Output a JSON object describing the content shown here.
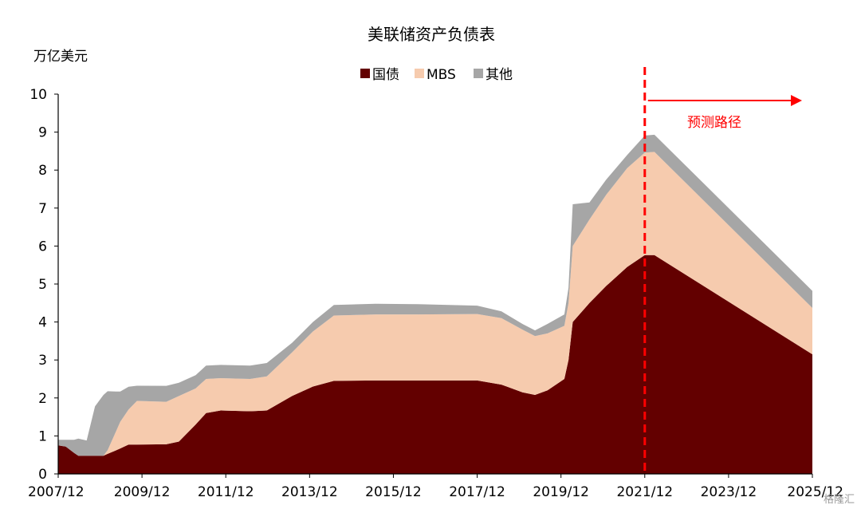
{
  "chart_data": {
    "type": "area",
    "title": "美联储资产负债表",
    "ylabel": "万亿美元",
    "ylim": [
      0,
      10
    ],
    "yticks": [
      0,
      1,
      2,
      3,
      4,
      5,
      6,
      7,
      8,
      9,
      10
    ],
    "xlim": [
      2007.92,
      2025.92
    ],
    "xtick_labels": [
      "2007/12",
      "2009/12",
      "2011/12",
      "2013/12",
      "2015/12",
      "2017/12",
      "2019/12",
      "2021/12",
      "2023/12",
      "2025/12"
    ],
    "xtick_values": [
      2007.92,
      2009.92,
      2011.92,
      2013.92,
      2015.92,
      2017.92,
      2019.92,
      2021.92,
      2023.92,
      2025.92
    ],
    "legend_position": "top-center",
    "stacking": "stacked",
    "series": [
      {
        "name": "国债",
        "color": "#630000",
        "points": [
          [
            2007.92,
            0.75
          ],
          [
            2008.1,
            0.72
          ],
          [
            2008.3,
            0.55
          ],
          [
            2008.4,
            0.48
          ],
          [
            2008.6,
            0.48
          ],
          [
            2009.0,
            0.48
          ],
          [
            2009.3,
            0.62
          ],
          [
            2009.6,
            0.77
          ],
          [
            2010.5,
            0.78
          ],
          [
            2010.8,
            0.85
          ],
          [
            2011.2,
            1.3
          ],
          [
            2011.45,
            1.6
          ],
          [
            2011.8,
            1.67
          ],
          [
            2012.5,
            1.65
          ],
          [
            2012.9,
            1.67
          ],
          [
            2013.5,
            2.05
          ],
          [
            2014.0,
            2.3
          ],
          [
            2014.5,
            2.45
          ],
          [
            2015.5,
            2.46
          ],
          [
            2016.5,
            2.46
          ],
          [
            2017.92,
            2.46
          ],
          [
            2018.5,
            2.35
          ],
          [
            2019.0,
            2.15
          ],
          [
            2019.3,
            2.08
          ],
          [
            2019.6,
            2.2
          ],
          [
            2020.0,
            2.5
          ],
          [
            2020.1,
            3.0
          ],
          [
            2020.2,
            4.0
          ],
          [
            2020.6,
            4.5
          ],
          [
            2021.0,
            4.95
          ],
          [
            2021.5,
            5.45
          ],
          [
            2021.92,
            5.76
          ],
          [
            2022.15,
            5.76
          ],
          [
            2025.92,
            3.15
          ]
        ]
      },
      {
        "name": "MBS",
        "color": "#F6CBAE",
        "points": [
          [
            2007.92,
            0
          ],
          [
            2008.4,
            0
          ],
          [
            2009.0,
            0
          ],
          [
            2009.1,
            0.1
          ],
          [
            2009.4,
            0.7
          ],
          [
            2009.8,
            1.15
          ],
          [
            2010.5,
            1.12
          ],
          [
            2010.8,
            1.2
          ],
          [
            2011.2,
            0.95
          ],
          [
            2011.45,
            0.9
          ],
          [
            2011.8,
            0.85
          ],
          [
            2012.5,
            0.85
          ],
          [
            2012.9,
            0.9
          ],
          [
            2013.5,
            1.15
          ],
          [
            2014.0,
            1.45
          ],
          [
            2014.5,
            1.72
          ],
          [
            2015.5,
            1.74
          ],
          [
            2016.5,
            1.74
          ],
          [
            2017.92,
            1.75
          ],
          [
            2018.5,
            1.75
          ],
          [
            2019.0,
            1.65
          ],
          [
            2019.3,
            1.55
          ],
          [
            2019.6,
            1.5
          ],
          [
            2020.0,
            1.4
          ],
          [
            2020.1,
            1.5
          ],
          [
            2020.2,
            2.0
          ],
          [
            2020.6,
            2.2
          ],
          [
            2021.0,
            2.4
          ],
          [
            2021.5,
            2.6
          ],
          [
            2021.92,
            2.7
          ],
          [
            2022.15,
            2.72
          ],
          [
            2025.92,
            1.22
          ]
        ]
      },
      {
        "name": "其他",
        "color": "#A6A6A6",
        "points": [
          [
            2007.92,
            0.15
          ],
          [
            2008.1,
            0.18
          ],
          [
            2008.3,
            0.35
          ],
          [
            2008.4,
            0.45
          ],
          [
            2008.6,
            0.4
          ],
          [
            2008.8,
            1.3
          ],
          [
            2009.0,
            1.6
          ],
          [
            2009.1,
            1.55
          ],
          [
            2009.4,
            0.8
          ],
          [
            2009.8,
            0.4
          ],
          [
            2010.5,
            0.42
          ],
          [
            2010.8,
            0.35
          ],
          [
            2011.2,
            0.35
          ],
          [
            2011.45,
            0.35
          ],
          [
            2011.8,
            0.35
          ],
          [
            2012.5,
            0.35
          ],
          [
            2012.9,
            0.35
          ],
          [
            2013.5,
            0.25
          ],
          [
            2014.0,
            0.25
          ],
          [
            2014.5,
            0.28
          ],
          [
            2015.5,
            0.28
          ],
          [
            2016.5,
            0.27
          ],
          [
            2017.92,
            0.22
          ],
          [
            2018.5,
            0.18
          ],
          [
            2019.0,
            0.15
          ],
          [
            2019.3,
            0.15
          ],
          [
            2019.6,
            0.25
          ],
          [
            2020.0,
            0.3
          ],
          [
            2020.1,
            0.4
          ],
          [
            2020.2,
            1.1
          ],
          [
            2020.6,
            0.45
          ],
          [
            2021.0,
            0.4
          ],
          [
            2021.5,
            0.35
          ],
          [
            2021.92,
            0.45
          ],
          [
            2022.15,
            0.45
          ],
          [
            2025.92,
            0.45
          ]
        ]
      }
    ],
    "annotations": {
      "forecast_label": "预测路径",
      "forecast_x": 2021.92,
      "forecast_color": "#FF0000"
    },
    "watermark": "格隆汇"
  }
}
